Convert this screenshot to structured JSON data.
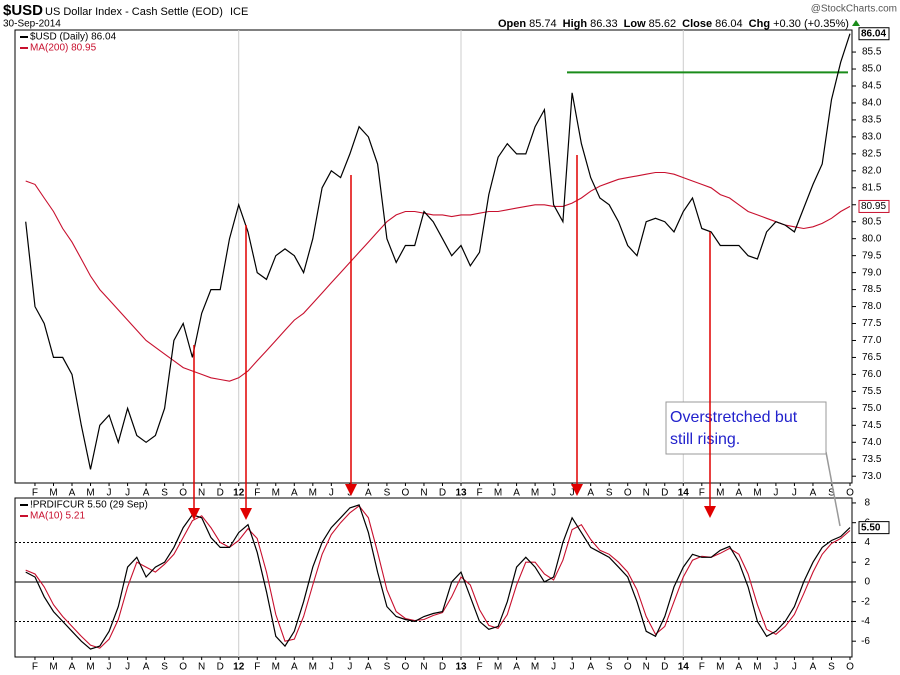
{
  "header": {
    "symbol": "$USD",
    "description": "US Dollar Index - Cash Settle (EOD)",
    "exchange": "ICE",
    "date": "30-Sep-2014",
    "watermark": "@StockCharts.com",
    "quote": [
      {
        "label": "Open",
        "value": 85.74
      },
      {
        "label": "High",
        "value": 86.33
      },
      {
        "label": "Low",
        "value": 85.62
      },
      {
        "label": "Close",
        "value": 86.04
      },
      {
        "label": "Chg",
        "value": "+0.30 (+0.35%)"
      }
    ]
  },
  "chart_data": [
    {
      "type": "line",
      "categories": [
        null,
        "F",
        null,
        "M",
        null,
        "A",
        null,
        "M",
        null,
        "J",
        null,
        "J",
        null,
        "A",
        null,
        "S",
        null,
        "O",
        null,
        "N",
        null,
        "D",
        null,
        "12",
        null,
        "F",
        null,
        "M",
        null,
        "A",
        null,
        "M",
        null,
        "J",
        null,
        "J",
        null,
        "A",
        null,
        "S",
        null,
        "O",
        null,
        "N",
        null,
        "D",
        null,
        "13",
        null,
        "F",
        null,
        "M",
        null,
        "A",
        null,
        "M",
        null,
        "J",
        null,
        "J",
        null,
        "A",
        null,
        "S",
        null,
        "O",
        null,
        "N",
        null,
        "D",
        null,
        "14",
        null,
        "F",
        null,
        "M",
        null,
        "A",
        null,
        "M",
        null,
        "J",
        null,
        "J",
        null,
        "A",
        null,
        "S",
        null,
        "O"
      ],
      "series": [
        {
          "name": "$USD (Daily) 86.04",
          "color": "#000000",
          "last_label": "86.04",
          "values": [
            80.5,
            78.0,
            77.5,
            76.5,
            76.5,
            76.0,
            74.5,
            73.2,
            74.5,
            74.8,
            74.0,
            75.0,
            74.2,
            74.0,
            74.2,
            75.0,
            77.0,
            77.5,
            76.5,
            77.8,
            78.5,
            78.5,
            80.0,
            81.0,
            80.2,
            79.0,
            78.8,
            79.5,
            79.7,
            79.5,
            79.0,
            80.0,
            81.5,
            82.0,
            81.8,
            82.5,
            83.3,
            83.0,
            82.2,
            80.0,
            79.3,
            79.8,
            79.8,
            80.8,
            80.5,
            80.0,
            79.5,
            79.8,
            79.2,
            79.6,
            81.3,
            82.4,
            82.8,
            82.5,
            82.5,
            83.3,
            83.8,
            81.0,
            80.5,
            84.3,
            82.8,
            81.8,
            81.2,
            81.0,
            80.5,
            79.8,
            79.5,
            80.5,
            80.6,
            80.5,
            80.2,
            80.8,
            81.2,
            80.3,
            80.2,
            79.8,
            79.8,
            79.8,
            79.5,
            79.4,
            80.2,
            80.5,
            80.4,
            80.2,
            80.9,
            81.6,
            82.2,
            84.1,
            85.2,
            86.04
          ]
        },
        {
          "name": "MA(200) 80.95",
          "color": "#c8102e",
          "last_label": "80.95",
          "values": [
            81.7,
            81.6,
            81.2,
            80.8,
            80.3,
            79.9,
            79.4,
            78.9,
            78.5,
            78.2,
            77.9,
            77.6,
            77.3,
            77.0,
            76.8,
            76.6,
            76.4,
            76.2,
            76.1,
            76.0,
            75.9,
            75.85,
            75.8,
            75.9,
            76.1,
            76.4,
            76.7,
            77.0,
            77.3,
            77.6,
            77.8,
            78.1,
            78.4,
            78.7,
            79.0,
            79.3,
            79.6,
            79.9,
            80.2,
            80.5,
            80.7,
            80.8,
            80.8,
            80.75,
            80.7,
            80.7,
            80.65,
            80.7,
            80.7,
            80.75,
            80.8,
            80.8,
            80.85,
            80.9,
            80.95,
            81.0,
            81.0,
            80.95,
            80.95,
            81.05,
            81.2,
            81.4,
            81.55,
            81.65,
            81.75,
            81.8,
            81.85,
            81.9,
            81.95,
            81.95,
            81.9,
            81.8,
            81.7,
            81.6,
            81.5,
            81.3,
            81.2,
            81.0,
            80.8,
            80.7,
            80.6,
            80.5,
            80.4,
            80.35,
            80.3,
            80.35,
            80.45,
            80.6,
            80.8,
            80.95
          ]
        }
      ],
      "ylim": [
        72.8,
        86.15
      ],
      "yticks": [
        {
          "value": 73,
          "label": "73.0"
        },
        73.5,
        {
          "value": 74,
          "label": "74.0"
        },
        74.5,
        {
          "value": 75,
          "label": "75.0"
        },
        75.5,
        {
          "value": 76,
          "label": "76.0"
        },
        76.5,
        {
          "value": 77,
          "label": "77.0"
        },
        77.5,
        {
          "value": 78,
          "label": "78.0"
        },
        78.5,
        {
          "value": 79,
          "label": "79.0"
        },
        79.5,
        {
          "value": 80,
          "label": "80.0"
        },
        80.5,
        {
          "value": 81,
          "label": "81.0"
        },
        81.5,
        {
          "value": 82,
          "label": "82.0"
        },
        82.5,
        {
          "value": 83,
          "label": "83.0"
        },
        83.5,
        {
          "value": 84,
          "label": "84.0"
        },
        84.5,
        {
          "value": 85,
          "label": "85.0"
        },
        85.5
      ],
      "resistance": {
        "value": 84.9,
        "color": "#1a8c1a"
      }
    },
    {
      "type": "line",
      "categories": [
        null,
        "F",
        null,
        "M",
        null,
        "A",
        null,
        "M",
        null,
        "J",
        null,
        "J",
        null,
        "A",
        null,
        "S",
        null,
        "O",
        null,
        "N",
        null,
        "D",
        null,
        "12",
        null,
        "F",
        null,
        "M",
        null,
        "A",
        null,
        "M",
        null,
        "J",
        null,
        "J",
        null,
        "A",
        null,
        "S",
        null,
        "O",
        null,
        "N",
        null,
        "D",
        null,
        "13",
        null,
        "F",
        null,
        "M",
        null,
        "A",
        null,
        "M",
        null,
        "J",
        null,
        "J",
        null,
        "A",
        null,
        "S",
        null,
        "O",
        null,
        "N",
        null,
        "D",
        null,
        "14",
        null,
        "F",
        null,
        "M",
        null,
        "A",
        null,
        "M",
        null,
        "J",
        null,
        "J",
        null,
        "A",
        null,
        "S",
        null,
        "O"
      ],
      "series": [
        {
          "name": "!PRDIFCUR 5.50 (29 Sep)",
          "color": "#000000",
          "last_label": "5.50",
          "values": [
            1.0,
            0.5,
            -1.5,
            -3.0,
            -4.0,
            -5.0,
            -6.0,
            -6.8,
            -6.5,
            -5.0,
            -2.5,
            1.5,
            2.5,
            0.5,
            1.5,
            2.0,
            3.5,
            5.5,
            6.8,
            6.5,
            4.5,
            3.5,
            3.5,
            5.0,
            5.8,
            3.0,
            -1.0,
            -5.5,
            -6.5,
            -5.0,
            -2.0,
            1.5,
            4.0,
            5.5,
            6.5,
            7.5,
            7.8,
            5.0,
            1.0,
            -2.5,
            -3.5,
            -3.8,
            -4.0,
            -3.5,
            -3.2,
            -3.0,
            0.0,
            1.0,
            -1.5,
            -4.0,
            -4.8,
            -4.5,
            -2.0,
            1.5,
            2.5,
            1.5,
            0.0,
            0.5,
            4.0,
            6.5,
            5.0,
            3.5,
            3.0,
            2.5,
            1.5,
            0.5,
            -2.0,
            -5.0,
            -5.5,
            -3.5,
            -0.5,
            1.5,
            2.8,
            2.5,
            2.5,
            3.2,
            3.6,
            2.0,
            -0.5,
            -4.0,
            -5.5,
            -5.0,
            -4.0,
            -2.5,
            0.0,
            2.0,
            3.5,
            4.2,
            4.6,
            5.5
          ]
        },
        {
          "name": "MA(10) 5.21",
          "color": "#c8102e",
          "values": [
            1.2,
            0.8,
            -0.5,
            -2.3,
            -3.5,
            -4.5,
            -5.5,
            -6.4,
            -6.7,
            -5.8,
            -3.8,
            -0.5,
            2.0,
            1.5,
            1.0,
            1.8,
            2.8,
            4.5,
            6.2,
            6.7,
            5.5,
            4.0,
            3.5,
            4.2,
            5.4,
            4.4,
            1.0,
            -3.3,
            -6.0,
            -5.8,
            -3.5,
            -0.3,
            2.8,
            4.8,
            6.0,
            7.0,
            7.7,
            6.5,
            3.0,
            -0.8,
            -3.0,
            -3.7,
            -3.9,
            -3.8,
            -3.4,
            -3.1,
            -1.5,
            0.5,
            -0.3,
            -2.8,
            -4.4,
            -4.7,
            -3.3,
            -0.3,
            2.0,
            2.0,
            0.8,
            0.2,
            2.2,
            5.3,
            5.8,
            4.3,
            3.2,
            2.8,
            2.0,
            1.0,
            -0.8,
            -3.5,
            -5.3,
            -4.5,
            -2.0,
            0.5,
            2.2,
            2.6,
            2.5,
            2.9,
            3.4,
            2.8,
            0.8,
            -2.3,
            -4.8,
            -5.3,
            -4.5,
            -3.3,
            -1.2,
            1.0,
            2.8,
            3.9,
            4.4,
            5.21
          ]
        }
      ],
      "ylim": [
        -7.6,
        8.5
      ],
      "yticks": [
        -6,
        -4,
        -2,
        0,
        2,
        4,
        6,
        8
      ],
      "reference_lines": [
        4,
        0,
        -4
      ],
      "annotation": [
        "Overstretched but",
        "still rising."
      ]
    }
  ]
}
